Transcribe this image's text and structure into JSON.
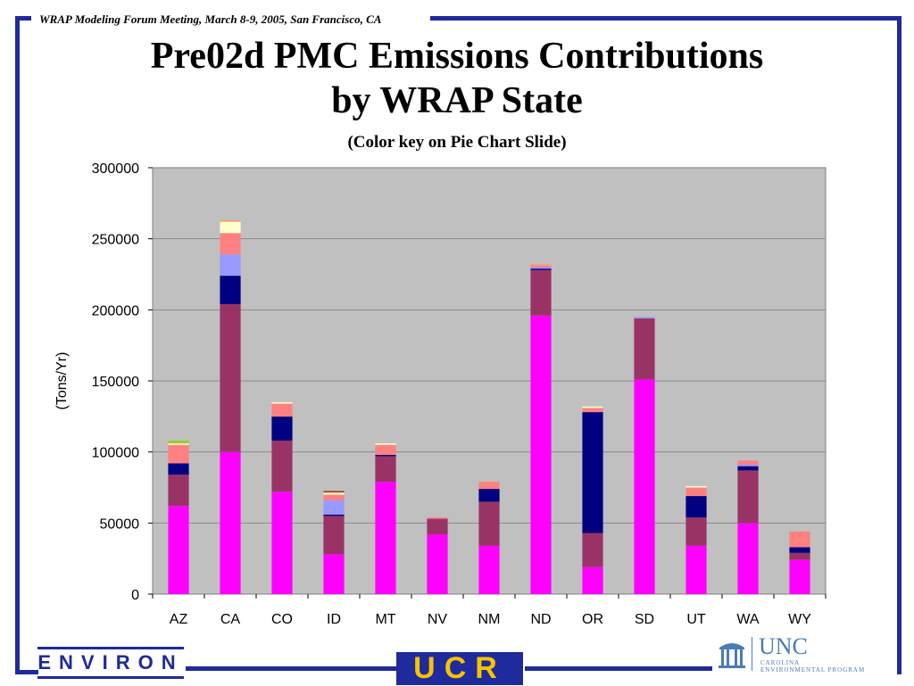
{
  "slide": {
    "header": "WRAP Modeling Forum Meeting, March 8-9, 2005, San Francisco, CA",
    "title_line1": "Pre02d PMC Emissions Contributions",
    "title_line2": "by WRAP State",
    "subtitle": "(Color key on Pie Chart Slide)",
    "frame_color": "#1f2a9c"
  },
  "logos": {
    "environ": "ENVIRON",
    "ucr": "UCR",
    "unc": "UNC",
    "unc_sub1": "CAROLINA",
    "unc_sub2": "ENVIRONMENTAL PROGRAM"
  },
  "chart_data": {
    "type": "bar",
    "stacked": true,
    "categories": [
      "AZ",
      "CA",
      "CO",
      "ID",
      "MT",
      "NV",
      "NM",
      "ND",
      "OR",
      "SD",
      "UT",
      "WA",
      "WY"
    ],
    "ylabel": "(Tons/Yr)",
    "ylim": [
      0,
      300000
    ],
    "yticks": [
      0,
      50000,
      100000,
      150000,
      200000,
      250000,
      300000
    ],
    "grid": true,
    "plot_background": "#c0c0c0",
    "series": [
      {
        "color": "#ff00ff",
        "values": [
          62000,
          100000,
          72000,
          28000,
          79000,
          42000,
          34000,
          196000,
          19000,
          151000,
          34000,
          50000,
          24000
        ]
      },
      {
        "color": "#993366",
        "values": [
          22000,
          104000,
          36000,
          27000,
          18000,
          11000,
          31000,
          32000,
          24000,
          43000,
          20000,
          37000,
          5000
        ]
      },
      {
        "color": "#000080",
        "values": [
          8000,
          20000,
          17000,
          1000,
          1000,
          0,
          9000,
          1000,
          85000,
          0,
          15000,
          3000,
          4000
        ]
      },
      {
        "color": "#9999ff",
        "values": [
          0,
          15000,
          0,
          10000,
          0,
          0,
          0,
          1000,
          0,
          1000,
          0,
          1000,
          0
        ]
      },
      {
        "color": "#ff8080",
        "values": [
          13000,
          15000,
          9000,
          4000,
          7000,
          1000,
          5000,
          1000,
          3000,
          0,
          6000,
          3000,
          11000
        ]
      },
      {
        "color": "#ffffcc",
        "values": [
          1000,
          8000,
          1000,
          1500,
          1000,
          0,
          0,
          0,
          1000,
          0,
          1000,
          0,
          0
        ]
      },
      {
        "color": "#ff9966",
        "values": [
          0,
          1000,
          0,
          0,
          0,
          0,
          0,
          1000,
          0,
          0,
          0,
          0,
          0
        ]
      },
      {
        "color": "#993300",
        "values": [
          0,
          0,
          0,
          1000,
          0,
          0,
          0,
          0,
          0,
          0,
          0,
          0,
          0
        ]
      },
      {
        "color": "#99cc33",
        "values": [
          2000,
          0,
          0,
          0,
          0,
          0,
          0,
          0,
          0,
          0,
          0,
          0,
          0
        ]
      }
    ]
  }
}
